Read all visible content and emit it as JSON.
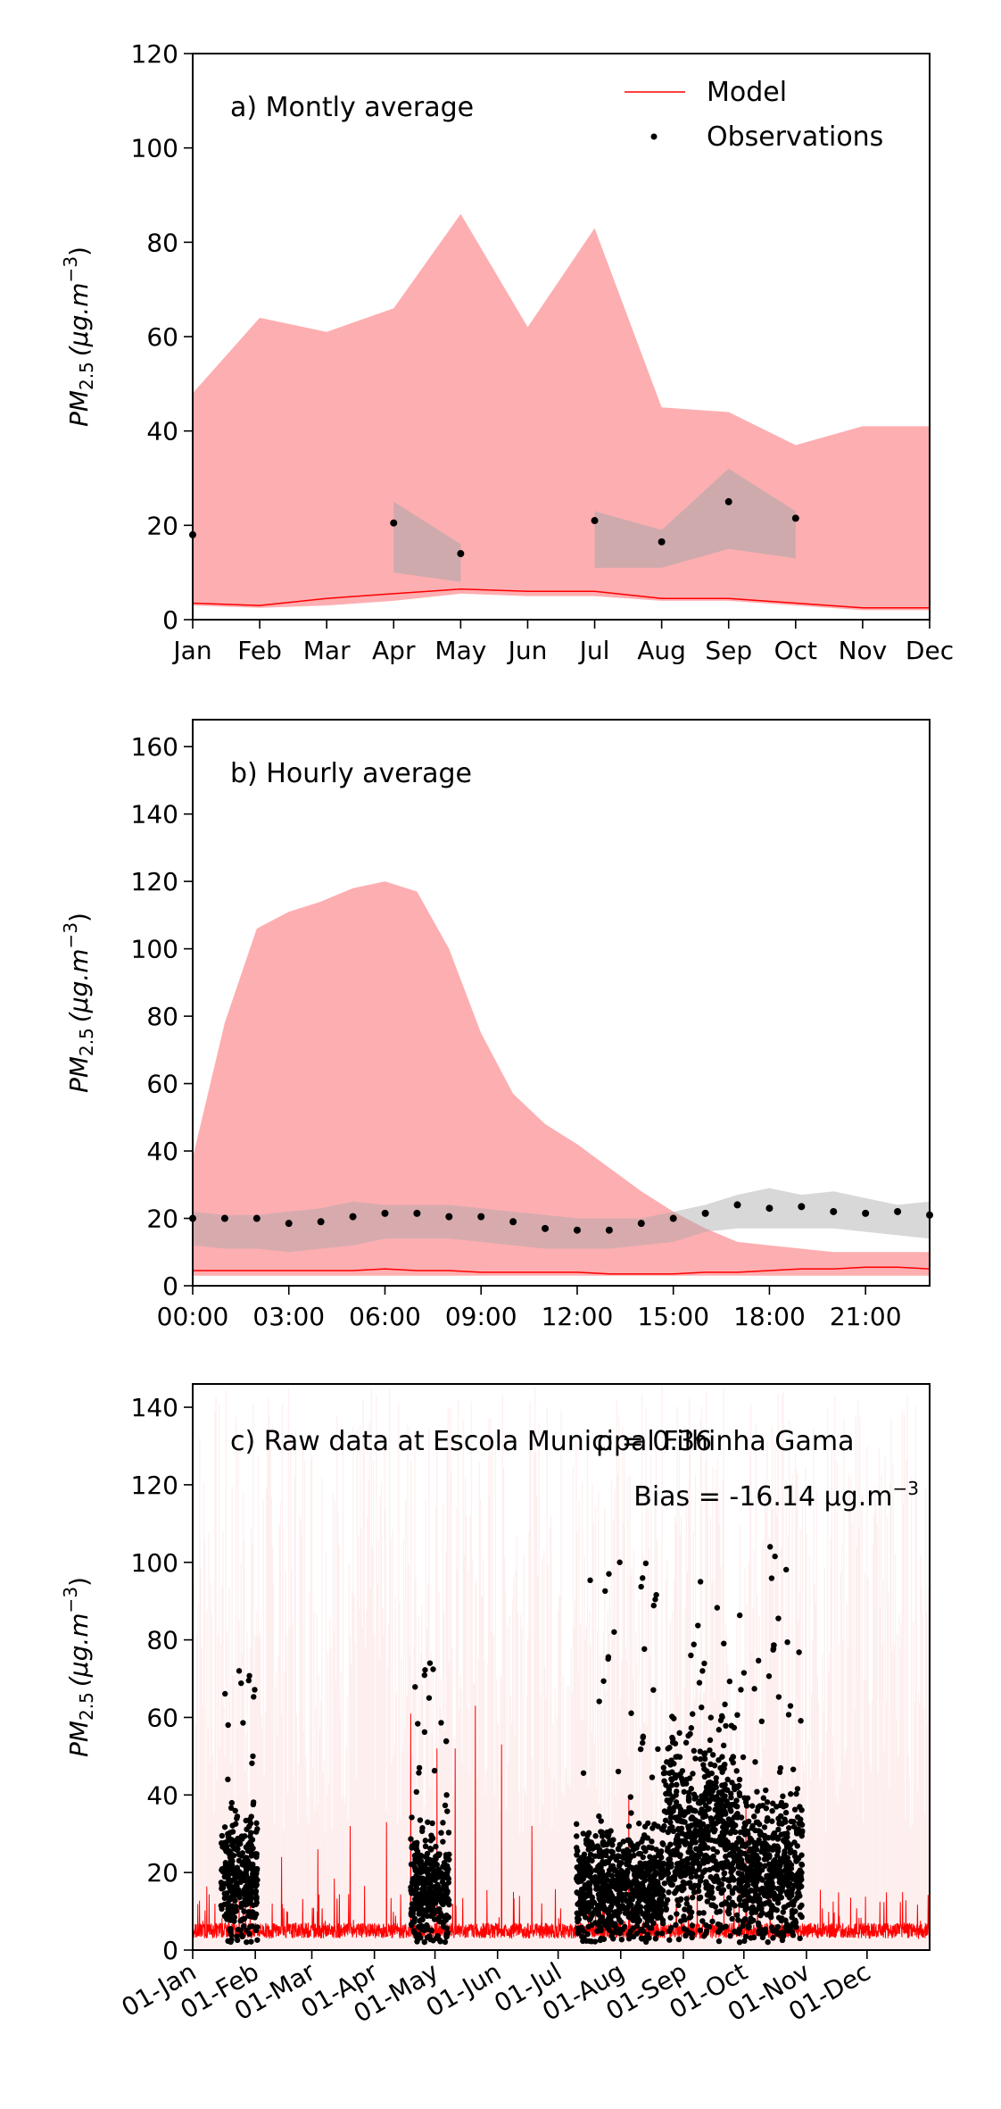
{
  "colors": {
    "model": "#ff0000",
    "model_band": "#fdaeb1",
    "obs": "#000000",
    "obs_band": "#a8a8a8",
    "raw_band": "#fde4e4"
  },
  "chart_data": [
    {
      "type": "area",
      "title": "a) Montly average",
      "ylabel": "PM",
      "ylabel_sub": "2.5",
      "ylabel_units": "(μg.m",
      "ylabel_sup": "−3",
      "ylabel_close": ")",
      "ylim": [
        0,
        120
      ],
      "yticks": [
        0,
        20,
        40,
        60,
        80,
        100,
        120
      ],
      "xticks": [
        "Jan",
        "Feb",
        "Mar",
        "Apr",
        "May",
        "Jun",
        "Jul",
        "Aug",
        "Sep",
        "Oct",
        "Nov",
        "Dec"
      ],
      "legend": {
        "position": "top-right",
        "entries": [
          "Model",
          "Observations"
        ]
      },
      "model_band_upper": [
        48,
        64,
        61,
        66,
        86,
        62,
        83,
        45,
        44,
        37,
        41,
        41
      ],
      "model_band_lower": [
        3,
        2.5,
        3,
        4,
        5.5,
        5,
        5,
        4,
        4,
        3,
        2,
        2
      ],
      "model_mean": [
        3.5,
        3,
        4.5,
        5.5,
        6.5,
        6,
        6,
        4.5,
        4.5,
        3.5,
        2.5,
        2.5
      ],
      "obs_x": [
        0,
        3,
        4,
        6,
        7,
        8,
        9
      ],
      "obs_values": [
        18,
        20.5,
        14,
        21,
        16.5,
        25,
        21.5
      ],
      "obs_band_segments": [
        {
          "x": [
            3,
            4
          ],
          "upper": [
            25,
            16
          ],
          "lower": [
            10,
            8
          ]
        },
        {
          "x": [
            6,
            7,
            8,
            9
          ],
          "upper": [
            23,
            19,
            32,
            23
          ],
          "lower": [
            11,
            11,
            15,
            13
          ]
        }
      ]
    },
    {
      "type": "area",
      "title": "b) Hourly average",
      "ylabel": "PM",
      "ylabel_sub": "2.5",
      "ylabel_units": "(μg.m",
      "ylabel_sup": "−3",
      "ylabel_close": ")",
      "ylim": [
        0,
        168
      ],
      "yticks": [
        0,
        20,
        40,
        60,
        80,
        100,
        120,
        140,
        160
      ],
      "xticks_hours": [
        0,
        3,
        6,
        9,
        12,
        15,
        18,
        21
      ],
      "xtick_labels": [
        "00:00",
        "03:00",
        "06:00",
        "09:00",
        "12:00",
        "15:00",
        "18:00",
        "21:00"
      ],
      "xlim": [
        0,
        23
      ],
      "model_band_upper": [
        38,
        78,
        106,
        111,
        114,
        118,
        120,
        117,
        100,
        75,
        57,
        48,
        42,
        35,
        28,
        22,
        17,
        13,
        12,
        11,
        10,
        10,
        10,
        10
      ],
      "model_band_lower": [
        3,
        3,
        3,
        3,
        3,
        3,
        3,
        3,
        3,
        3,
        3,
        3,
        3,
        3,
        3,
        3,
        3,
        3,
        3,
        3,
        3,
        3,
        3,
        3
      ],
      "model_mean": [
        4.5,
        4.5,
        4.5,
        4.5,
        4.5,
        4.5,
        5,
        4.5,
        4.5,
        4,
        4,
        4,
        4,
        3.5,
        3.5,
        3.5,
        4,
        4,
        4.5,
        5,
        5,
        5.5,
        5.5,
        5
      ],
      "obs_values": [
        20,
        20,
        20,
        18.5,
        19,
        20.5,
        21.5,
        21.5,
        20.5,
        20.5,
        19,
        17,
        16.5,
        16.5,
        18.5,
        20,
        21.5,
        24,
        23,
        23.5,
        22,
        21.5,
        22,
        21
      ],
      "obs_band_upper": [
        22,
        21,
        21,
        22,
        23,
        25,
        24,
        24,
        24,
        23,
        22,
        21,
        20,
        20,
        20,
        22,
        24,
        27,
        29,
        27,
        28,
        26,
        24,
        25
      ],
      "obs_band_lower": [
        12,
        11,
        11,
        10,
        11,
        12,
        14,
        14,
        14,
        13,
        12,
        11,
        11,
        11,
        12,
        13,
        16,
        17,
        17,
        17,
        17,
        16,
        15,
        14
      ]
    },
    {
      "type": "line",
      "title": "c) Raw data at Escola Municipal Filhinha Gama",
      "stat_r": "ρ = 0.36",
      "stat_bias": "Bias = -16.14 μg.m",
      "stat_bias_sup": "−3",
      "ylabel": "PM",
      "ylabel_sub": "2.5",
      "ylabel_units": "(μg.m",
      "ylabel_sup": "−3",
      "ylabel_close": ")",
      "ylim": [
        0,
        146
      ],
      "yticks": [
        0,
        20,
        40,
        60,
        80,
        100,
        120,
        140
      ],
      "xlim_days": [
        0,
        365
      ],
      "xticks_days": [
        0,
        31,
        59,
        90,
        120,
        151,
        181,
        212,
        243,
        273,
        304,
        334
      ],
      "xtick_labels": [
        "01-Jan",
        "01-Feb",
        "01-Mar",
        "01-Apr",
        "01-May",
        "01-Jun",
        "01-Jul",
        "01-Aug",
        "01-Sep",
        "01-Oct",
        "01-Nov",
        "01-Dec"
      ],
      "obs_clusters": [
        {
          "start": 14,
          "end": 32,
          "mean": 18,
          "max": 72
        },
        {
          "start": 108,
          "end": 127,
          "mean": 16,
          "max": 74
        },
        {
          "start": 190,
          "end": 233,
          "mean": 16,
          "max": 100
        },
        {
          "start": 233,
          "end": 270,
          "mean": 28,
          "max": 95
        },
        {
          "start": 270,
          "end": 302,
          "mean": 20,
          "max": 104
        }
      ],
      "model_spikes": [
        {
          "day": 108,
          "value": 61
        },
        {
          "day": 121,
          "value": 52
        },
        {
          "day": 130,
          "value": 52
        },
        {
          "day": 140,
          "value": 63
        },
        {
          "day": 153,
          "value": 53
        },
        {
          "day": 96,
          "value": 33
        },
        {
          "day": 78,
          "value": 32
        },
        {
          "day": 216,
          "value": 40
        },
        {
          "day": 168,
          "value": 32
        },
        {
          "day": 274,
          "value": 38
        },
        {
          "day": 62,
          "value": 26
        },
        {
          "day": 44,
          "value": 24
        }
      ]
    }
  ]
}
